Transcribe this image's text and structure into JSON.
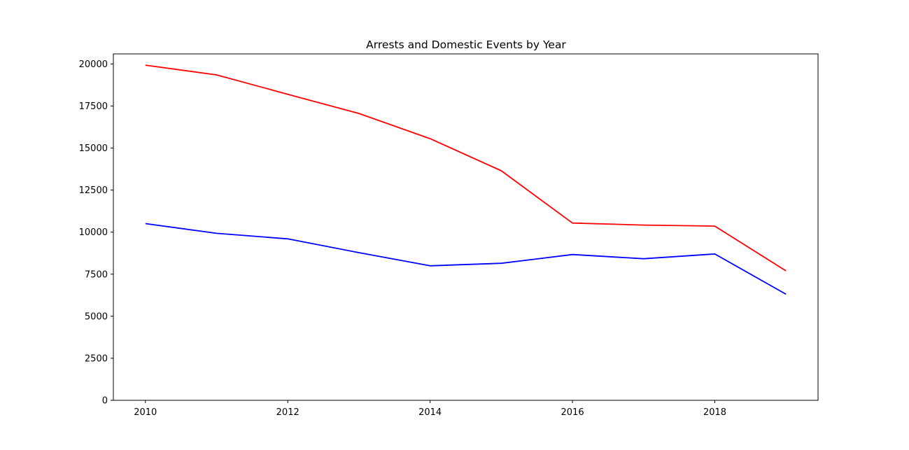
{
  "chart_data": {
    "type": "line",
    "title": "Arrests and Domestic Events by Year",
    "xlabel": "",
    "ylabel": "",
    "xlim": [
      2009.55,
      2019.45
    ],
    "ylim": [
      0,
      20600
    ],
    "x_ticks": [
      2010,
      2012,
      2014,
      2016,
      2018
    ],
    "y_ticks": [
      0,
      2500,
      5000,
      7500,
      10000,
      12500,
      15000,
      17500,
      20000
    ],
    "grid": false,
    "legend": "none",
    "x": [
      2010,
      2011,
      2012,
      2013,
      2014,
      2015,
      2016,
      2017,
      2018,
      2019
    ],
    "series": [
      {
        "color": "#ff0000",
        "values": [
          19930,
          19350,
          18200,
          17060,
          15560,
          13650,
          10540,
          10420,
          10360,
          7700
        ]
      },
      {
        "color": "#0000ff",
        "values": [
          10510,
          9930,
          9600,
          8780,
          8000,
          8150,
          8670,
          8420,
          8700,
          6310
        ]
      }
    ]
  }
}
